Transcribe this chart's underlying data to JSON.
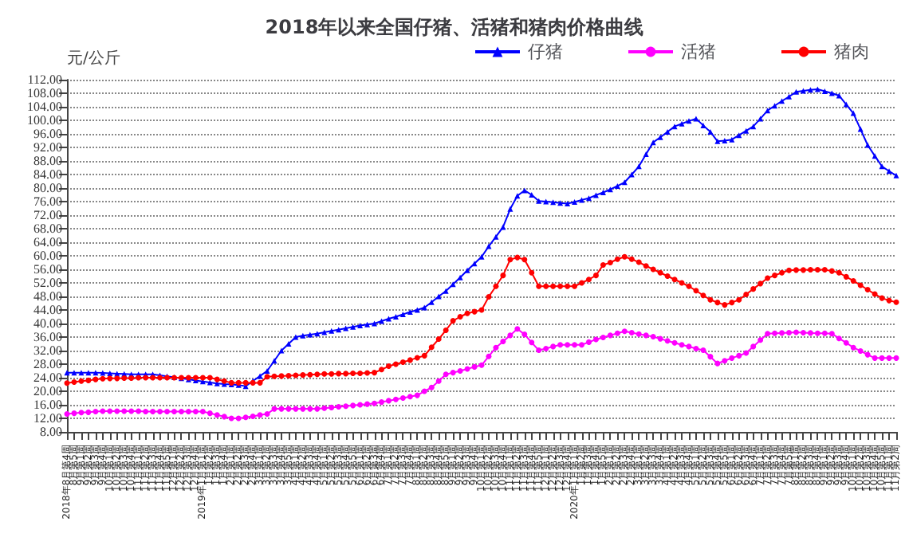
{
  "chart_data": {
    "type": "line",
    "title": "2018年以来全国仔猪、活猪和猪肉价格曲线",
    "ylabel": "元/公斤",
    "categories": [
      "2018年8月第4周",
      "8月第5周",
      "9月第1周",
      "9月第2周",
      "9月第3周",
      "9月第4周",
      "10月第1周",
      "10月第2周",
      "10月第3周",
      "10月第4周",
      "11月第1周",
      "11月第2周",
      "11月第3周",
      "11月第4周",
      "11月第5周",
      "12月第1周",
      "12月第2周",
      "12月第3周",
      "12月第4周",
      "2019年1月第1周",
      "1月第2周",
      "1月第3周",
      "1月第4周",
      "2月第1周",
      "2月第2周",
      "2月第3周",
      "2月第4周",
      "3月第1周",
      "3月第2周",
      "3月第3周",
      "3月第4周",
      "3月第5周",
      "4月第1周",
      "4月第2周",
      "4月第3周",
      "4月第4周",
      "5月第1周",
      "5月第2周",
      "5月第3周",
      "5月第4周",
      "5月第5周",
      "6月第1周",
      "6月第2周",
      "6月第3周",
      "6月第4周",
      "7月第1周",
      "7月第2周",
      "7月第3周",
      "7月第4周",
      "8月第1周",
      "8月第2周",
      "8月第3周",
      "8月第4周",
      "8月第5周",
      "9月第1周",
      "9月第2周",
      "9月第3周",
      "9月第4周",
      "10月第1周",
      "10月第2周",
      "10月第3周",
      "10月第4周",
      "11月第1周",
      "11月第2周",
      "11月第3周",
      "11月第4周",
      "11月第5周",
      "12月第1周",
      "12月第2周",
      "12月第3周",
      "12月第4周",
      "2020年1月第1周",
      "1月第2周",
      "1月第3周",
      "1月第4周",
      "1月第5周",
      "2月第1周",
      "2月第2周",
      "2月第3周",
      "2月第4周",
      "3月第1周",
      "3月第2周",
      "3月第3周",
      "3月第4周",
      "4月第1周",
      "4月第2周",
      "4月第3周",
      "4月第4周",
      "5月第1周",
      "5月第2周",
      "5月第3周",
      "5月第4周",
      "5月第5周",
      "6月第1周",
      "6月第2周",
      "6月第3周",
      "6月第4周",
      "7月第1周",
      "7月第2周",
      "7月第3周",
      "7月第4周",
      "7月第5周",
      "8月第1周",
      "8月第2周",
      "8月第3周",
      "8月第4周",
      "9月第1周",
      "9月第2周",
      "9月第3周",
      "9月第4周",
      "10月第1周",
      "10月第2周",
      "10月第3周",
      "10月第4周",
      "10月第5周",
      "11月第1周",
      "11月第2周"
    ],
    "series": [
      {
        "name": "仔猪",
        "color": "#0000ff",
        "marker": "triangle",
        "values": [
          25.5,
          25.5,
          25.5,
          25.5,
          25.5,
          25.4,
          25.3,
          25.2,
          25.1,
          25.0,
          25.0,
          25.0,
          25.0,
          24.7,
          24.4,
          24.1,
          23.8,
          23.5,
          23.2,
          22.9,
          22.6,
          22.3,
          22.1,
          22.0,
          21.8,
          21.5,
          23,
          24.5,
          26,
          29,
          32,
          34,
          36,
          36.4,
          36.7,
          37,
          37.4,
          37.8,
          38.2,
          38.6,
          39,
          39.4,
          39.7,
          40,
          40.7,
          41.4,
          42,
          42.7,
          43.4,
          44,
          44.7,
          46.3,
          48,
          49.6,
          51.6,
          53.6,
          55.7,
          57.7,
          59.7,
          62.8,
          65.6,
          68.5,
          73.8,
          77.7,
          79.3,
          78,
          76.2,
          76,
          75.8,
          75.6,
          75.4,
          75.9,
          76.5,
          77,
          77.9,
          78.7,
          79.6,
          80.6,
          81.7,
          84,
          86.4,
          90,
          93.5,
          95,
          96.6,
          98.2,
          99,
          99.8,
          100.5,
          98.5,
          96.6,
          93.8,
          94,
          94.3,
          95.6,
          96.9,
          98.2,
          100.5,
          102.9,
          104.3,
          105.7,
          107,
          108.4,
          108.7,
          109,
          109.2,
          108.6,
          108,
          107.3,
          104.7,
          102.1,
          97.4,
          92.7,
          89.5,
          86.4,
          85,
          83.7
        ]
      },
      {
        "name": "活猪",
        "color": "#ff00ff",
        "marker": "circle",
        "values": [
          13.3,
          13.5,
          13.7,
          13.8,
          14,
          14.1,
          14.1,
          14.1,
          14.1,
          14.1,
          14.1,
          14,
          14,
          14,
          14,
          14,
          14,
          14,
          14,
          14,
          13.5,
          13,
          12.5,
          12,
          12,
          12.3,
          12.6,
          13,
          13.3,
          14.8,
          14.8,
          14.8,
          14.8,
          14.8,
          14.8,
          14.8,
          15,
          15.2,
          15.4,
          15.6,
          15.8,
          16,
          16.2,
          16.4,
          16.8,
          17.2,
          17.6,
          18,
          18.4,
          18.8,
          20,
          21.1,
          23,
          25,
          25.5,
          26,
          26.6,
          27.2,
          27.7,
          30.3,
          32.9,
          34.7,
          36.5,
          38.4,
          36.8,
          34.4,
          32.1,
          32.6,
          33.2,
          33.7,
          33.7,
          33.7,
          33.7,
          34.5,
          35.3,
          35.9,
          36.5,
          37.1,
          37.7,
          37.3,
          36.9,
          36.5,
          36.1,
          35.5,
          34.9,
          34.3,
          33.7,
          33.2,
          32.6,
          32.1,
          30.2,
          28.2,
          29,
          29.8,
          30.5,
          31.3,
          33.2,
          35.1,
          37,
          37.1,
          37.2,
          37.3,
          37.4,
          37.3,
          37.2,
          37.1,
          37.1,
          37,
          35.6,
          34.3,
          32.9,
          31.9,
          30.8,
          29.8,
          29.8,
          29.8,
          29.8
        ]
      },
      {
        "name": "猪肉",
        "color": "#ff0000",
        "marker": "circle",
        "values": [
          22.4,
          22.7,
          23,
          23.2,
          23.5,
          23.7,
          23.8,
          23.8,
          23.9,
          23.9,
          24,
          24,
          24,
          24,
          24,
          24,
          24,
          24,
          24,
          24,
          24,
          23.5,
          23,
          22.5,
          22.5,
          22.5,
          22.5,
          22.5,
          24.3,
          24.4,
          24.5,
          24.6,
          24.7,
          24.8,
          24.9,
          25,
          25.1,
          25.1,
          25.2,
          25.2,
          25.3,
          25.3,
          25.4,
          25.5,
          26.4,
          27.4,
          28,
          28.6,
          29.2,
          29.9,
          30.5,
          33,
          35.4,
          38,
          40.8,
          42,
          43,
          43.5,
          44,
          47.9,
          51,
          54.2,
          58.9,
          59.5,
          58.9,
          55,
          51,
          51,
          51,
          51,
          51,
          51,
          52,
          53,
          54.2,
          57.3,
          58,
          59,
          59.7,
          59,
          58.1,
          57,
          56,
          55,
          54,
          53,
          52,
          51,
          49.7,
          48.3,
          47,
          46.2,
          45.5,
          46.2,
          47,
          48.6,
          50.2,
          51.8,
          53.4,
          54.2,
          55,
          55.7,
          55.8,
          55.8,
          55.9,
          55.9,
          55.9,
          55.5,
          55,
          53.8,
          52.6,
          51.3,
          50,
          48.7,
          47.5,
          46.8,
          46.3
        ]
      }
    ],
    "ylim": [
      8,
      112
    ],
    "yticks": [
      {
        "value": 8,
        "label": "8.00"
      },
      {
        "value": 12,
        "label": "12.00"
      },
      {
        "value": 16,
        "label": "16.00"
      },
      {
        "value": 20,
        "label": "20.00"
      },
      {
        "value": 24,
        "label": "24.00"
      },
      {
        "value": 28,
        "label": "28.00"
      },
      {
        "value": 32,
        "label": "32.00"
      },
      {
        "value": 36,
        "label": "36.00"
      },
      {
        "value": 40,
        "label": "40.00"
      },
      {
        "value": 44,
        "label": "44.00"
      },
      {
        "value": 48,
        "label": "48.00"
      },
      {
        "value": 52,
        "label": "52.00"
      },
      {
        "value": 56,
        "label": "56.00"
      },
      {
        "value": 60,
        "label": "60.00"
      },
      {
        "value": 64,
        "label": "64.00"
      },
      {
        "value": 68,
        "label": "68.00"
      },
      {
        "value": 72,
        "label": "72.00"
      },
      {
        "value": 76,
        "label": "76.00"
      },
      {
        "value": 80,
        "label": "80.00"
      },
      {
        "value": 84,
        "label": "84.00"
      },
      {
        "value": 88,
        "label": "88.00"
      },
      {
        "value": 92,
        "label": "92.00"
      },
      {
        "value": 96,
        "label": "96.00"
      },
      {
        "value": 100,
        "label": "100.00"
      },
      {
        "value": 104,
        "label": "104.00"
      },
      {
        "value": 108,
        "label": "108.00"
      },
      {
        "value": 112,
        "label": "112.00"
      }
    ],
    "grid": "y",
    "legend": "top right"
  }
}
